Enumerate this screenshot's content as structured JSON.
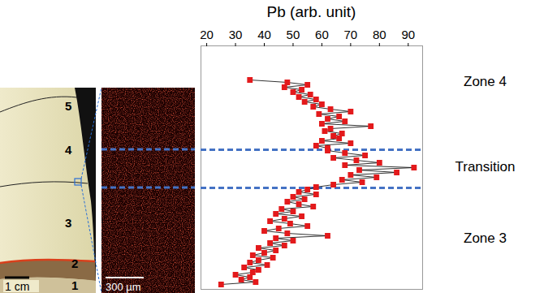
{
  "chart_data": {
    "type": "scatter",
    "marker": "square",
    "line_style": "solid",
    "color": "#e31a1c",
    "x_label": "Pb (arb. unit)",
    "xlim": [
      18,
      95
    ],
    "xticks": [
      20,
      30,
      40,
      50,
      60,
      70,
      80,
      90
    ],
    "ylim": [
      0,
      300
    ],
    "tick_labels": "x",
    "y": [
      42,
      45,
      48,
      51,
      54,
      57,
      60,
      63,
      66,
      69,
      72,
      75,
      78,
      81,
      84,
      87,
      90,
      93,
      96,
      99,
      102,
      105,
      108,
      111,
      114,
      117,
      120,
      123,
      126,
      129,
      132,
      135,
      138,
      141,
      144,
      147,
      150,
      153,
      156,
      159,
      162,
      165,
      168,
      171,
      174,
      177,
      180,
      183,
      186,
      189,
      192,
      195,
      198,
      201,
      204,
      207,
      210,
      213,
      216,
      219,
      222,
      225,
      228,
      231,
      234,
      237,
      240,
      243,
      246,
      249,
      252,
      255,
      258,
      261,
      264,
      267,
      270,
      273,
      276,
      279,
      282,
      285,
      288,
      291,
      294
    ],
    "x": [
      35,
      48,
      55,
      47,
      53,
      50,
      56,
      52,
      58,
      54,
      60,
      57,
      63,
      70,
      59,
      66,
      62,
      68,
      60,
      77,
      63,
      61,
      67,
      64,
      66,
      60,
      70,
      58,
      62,
      62,
      68,
      75,
      64,
      72,
      80,
      68,
      92,
      73,
      86,
      70,
      79,
      67,
      74,
      64,
      58,
      55,
      52,
      58,
      50,
      54,
      48,
      52,
      57,
      46,
      50,
      44,
      53,
      47,
      42,
      49,
      55,
      45,
      40,
      48,
      62,
      44,
      50,
      42,
      47,
      38,
      44,
      40,
      36,
      43,
      38,
      35,
      41,
      33,
      38,
      36,
      30,
      35,
      32,
      37,
      25
    ],
    "boundaries": [
      128,
      175
    ],
    "boundary_color": "#4472c4",
    "zones": [
      {
        "label": "Zone 4",
        "y": 44
      },
      {
        "label": "Transition",
        "y": 149
      },
      {
        "label": "Zone 3",
        "y": 237
      }
    ],
    "photo": {
      "zone_numbers": [
        "5",
        "4",
        "3",
        "2",
        "1"
      ],
      "scale_bar": "1 cm"
    },
    "map": {
      "scale_bar": "300 µm"
    }
  }
}
